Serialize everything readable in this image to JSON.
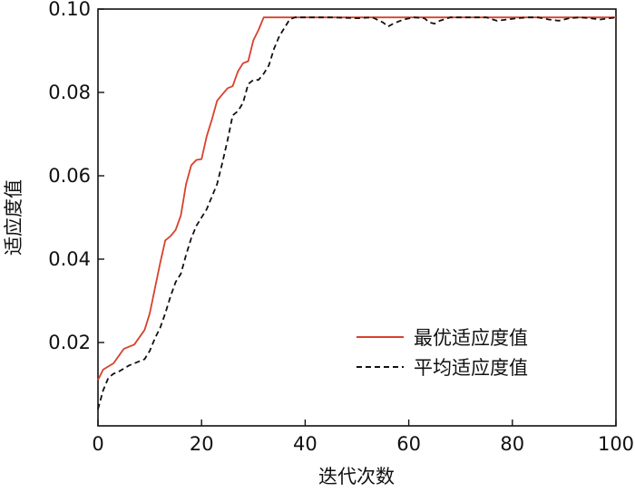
{
  "chart_data": {
    "type": "line",
    "title": "",
    "xlabel": "迭代次数",
    "ylabel": "适应度值",
    "xlim": [
      0,
      100
    ],
    "ylim": [
      0,
      0.1
    ],
    "xticks": [
      0,
      20,
      40,
      60,
      80,
      100
    ],
    "yticks": [
      0.02,
      0.04,
      0.06,
      0.08,
      0.1
    ],
    "xtick_labels": [
      "0",
      "20",
      "40",
      "60",
      "80",
      "100"
    ],
    "ytick_labels": [
      "0.02",
      "0.04",
      "0.06",
      "0.08",
      "0.10"
    ],
    "grid": false,
    "legend_position": "bottom-right",
    "series": [
      {
        "name": "最优适应度值",
        "color": "#d9402b",
        "style": "solid",
        "points": [
          [
            0,
            0.011
          ],
          [
            1,
            0.0135
          ],
          [
            3,
            0.015
          ],
          [
            5,
            0.0185
          ],
          [
            7,
            0.0195
          ],
          [
            9,
            0.023
          ],
          [
            10,
            0.027
          ],
          [
            11,
            0.033
          ],
          [
            12,
            0.039
          ],
          [
            13,
            0.0445
          ],
          [
            14,
            0.0455
          ],
          [
            15,
            0.047
          ],
          [
            16,
            0.0505
          ],
          [
            17,
            0.058
          ],
          [
            18,
            0.0625
          ],
          [
            19,
            0.0638
          ],
          [
            20,
            0.064
          ],
          [
            21,
            0.0695
          ],
          [
            22,
            0.0735
          ],
          [
            23,
            0.078
          ],
          [
            24,
            0.0795
          ],
          [
            25,
            0.081
          ],
          [
            26,
            0.0815
          ],
          [
            27,
            0.085
          ],
          [
            28,
            0.087
          ],
          [
            29,
            0.0875
          ],
          [
            30,
            0.0925
          ],
          [
            31,
            0.095
          ],
          [
            32,
            0.098
          ],
          [
            33,
            0.098
          ],
          [
            100,
            0.098
          ]
        ]
      },
      {
        "name": "平均适应度值",
        "color": "#111111",
        "style": "dashed",
        "points": [
          [
            0,
            0.004
          ],
          [
            1,
            0.0085
          ],
          [
            2,
            0.0115
          ],
          [
            3,
            0.0125
          ],
          [
            4,
            0.013
          ],
          [
            6,
            0.0145
          ],
          [
            7,
            0.015
          ],
          [
            9,
            0.016
          ],
          [
            10,
            0.018
          ],
          [
            11,
            0.021
          ],
          [
            12,
            0.0235
          ],
          [
            13,
            0.027
          ],
          [
            14,
            0.031
          ],
          [
            15,
            0.0345
          ],
          [
            16,
            0.0365
          ],
          [
            17,
            0.041
          ],
          [
            18,
            0.045
          ],
          [
            19,
            0.048
          ],
          [
            20,
            0.05
          ],
          [
            21,
            0.052
          ],
          [
            22,
            0.055
          ],
          [
            23,
            0.058
          ],
          [
            24,
            0.063
          ],
          [
            25,
            0.0685
          ],
          [
            26,
            0.0745
          ],
          [
            27,
            0.0755
          ],
          [
            28,
            0.0775
          ],
          [
            29,
            0.082
          ],
          [
            30,
            0.083
          ],
          [
            31,
            0.083
          ],
          [
            32,
            0.0845
          ],
          [
            33,
            0.0865
          ],
          [
            34,
            0.0905
          ],
          [
            35,
            0.0935
          ],
          [
            36,
            0.0955
          ],
          [
            37,
            0.0975
          ],
          [
            38,
            0.098
          ],
          [
            45,
            0.098
          ],
          [
            50,
            0.0978
          ],
          [
            53,
            0.098
          ],
          [
            55,
            0.0968
          ],
          [
            56,
            0.0958
          ],
          [
            57,
            0.0965
          ],
          [
            59,
            0.0975
          ],
          [
            61,
            0.098
          ],
          [
            63,
            0.0978
          ],
          [
            64,
            0.0968
          ],
          [
            65,
            0.0965
          ],
          [
            66,
            0.0972
          ],
          [
            68,
            0.098
          ],
          [
            75,
            0.098
          ],
          [
            77,
            0.0972
          ],
          [
            79,
            0.0975
          ],
          [
            81,
            0.0978
          ],
          [
            83,
            0.098
          ],
          [
            85,
            0.098
          ],
          [
            87,
            0.0975
          ],
          [
            89,
            0.0972
          ],
          [
            91,
            0.0978
          ],
          [
            93,
            0.098
          ],
          [
            95,
            0.0978
          ],
          [
            97,
            0.0975
          ],
          [
            100,
            0.098
          ]
        ]
      }
    ]
  }
}
